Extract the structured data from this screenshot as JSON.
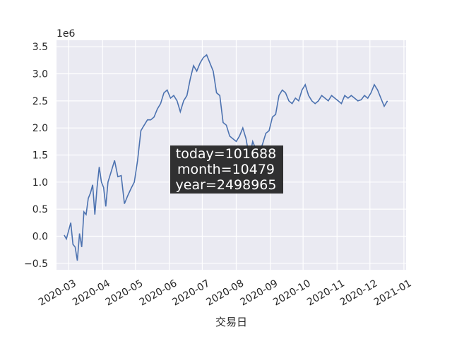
{
  "chart_data": {
    "type": "line",
    "title": "",
    "xlabel": "交易日",
    "ylabel": "",
    "y_offset_label": "1e6",
    "ylim": [
      -0.62,
      3.62
    ],
    "xlim": [
      "2020-02-19",
      "2021-01-03"
    ],
    "grid": true,
    "background": "#eaeaf2",
    "line_color": "#4c72b0",
    "x_ticks": [
      "2020-03",
      "2020-04",
      "2020-05",
      "2020-06",
      "2020-07",
      "2020-08",
      "2020-09",
      "2020-10",
      "2020-11",
      "2020-12",
      "2021-01"
    ],
    "x_tick_dates": [
      "2020-03-01",
      "2020-04-01",
      "2020-05-01",
      "2020-06-01",
      "2020-07-01",
      "2020-08-01",
      "2020-09-01",
      "2020-10-01",
      "2020-11-01",
      "2020-12-01",
      "2021-01-01"
    ],
    "y_ticks": [
      -0.5,
      0.0,
      0.5,
      1.0,
      1.5,
      2.0,
      2.5,
      3.0,
      3.5
    ],
    "y_tick_labels": [
      "−0.5",
      "0.0",
      "0.5",
      "1.0",
      "1.5",
      "2.0",
      "2.5",
      "3.0",
      "3.5"
    ],
    "annotation": [
      "today=101688",
      "month=10479",
      "year=2498965"
    ],
    "series": [
      {
        "x": [
          "2020-02-26",
          "2020-02-28",
          "2020-03-03",
          "2020-03-05",
          "2020-03-07",
          "2020-03-09",
          "2020-03-11",
          "2020-03-13",
          "2020-03-15",
          "2020-03-17",
          "2020-03-19",
          "2020-03-21",
          "2020-03-23",
          "2020-03-25",
          "2020-03-27",
          "2020-03-29",
          "2020-03-31",
          "2020-04-02",
          "2020-04-04",
          "2020-04-06",
          "2020-04-09",
          "2020-04-12",
          "2020-04-15",
          "2020-04-18",
          "2020-04-21",
          "2020-04-24",
          "2020-04-27",
          "2020-04-30",
          "2020-05-03",
          "2020-05-06",
          "2020-05-09",
          "2020-05-12",
          "2020-05-15",
          "2020-05-18",
          "2020-05-21",
          "2020-05-24",
          "2020-05-27",
          "2020-05-30",
          "2020-06-02",
          "2020-06-05",
          "2020-06-08",
          "2020-06-11",
          "2020-06-14",
          "2020-06-17",
          "2020-06-20",
          "2020-06-23",
          "2020-06-26",
          "2020-06-29",
          "2020-07-02",
          "2020-07-05",
          "2020-07-08",
          "2020-07-11",
          "2020-07-14",
          "2020-07-17",
          "2020-07-20",
          "2020-07-23",
          "2020-07-26",
          "2020-07-29",
          "2020-08-01",
          "2020-08-04",
          "2020-08-07",
          "2020-08-10",
          "2020-08-13",
          "2020-08-16",
          "2020-08-19",
          "2020-08-22",
          "2020-08-25",
          "2020-08-28",
          "2020-08-31",
          "2020-09-03",
          "2020-09-06",
          "2020-09-09",
          "2020-09-12",
          "2020-09-15",
          "2020-09-18",
          "2020-09-21",
          "2020-09-24",
          "2020-09-27",
          "2020-09-30",
          "2020-10-03",
          "2020-10-06",
          "2020-10-09",
          "2020-10-12",
          "2020-10-15",
          "2020-10-18",
          "2020-10-21",
          "2020-10-24",
          "2020-10-27",
          "2020-10-30",
          "2020-11-02",
          "2020-11-05",
          "2020-11-08",
          "2020-11-11",
          "2020-11-14",
          "2020-11-17",
          "2020-11-20",
          "2020-11-23",
          "2020-11-26",
          "2020-11-29",
          "2020-12-02",
          "2020-12-05",
          "2020-12-08",
          "2020-12-11",
          "2020-12-14",
          "2020-12-17"
        ],
        "y": [
          0.02,
          -0.05,
          0.25,
          -0.15,
          -0.2,
          -0.45,
          0.05,
          -0.2,
          0.45,
          0.4,
          0.7,
          0.8,
          0.95,
          0.4,
          0.9,
          1.28,
          1.0,
          0.9,
          0.55,
          1.0,
          1.2,
          1.4,
          1.1,
          1.12,
          0.6,
          0.75,
          0.88,
          1.0,
          1.4,
          1.95,
          2.05,
          2.15,
          2.15,
          2.2,
          2.35,
          2.45,
          2.65,
          2.7,
          2.55,
          2.6,
          2.5,
          2.3,
          2.5,
          2.6,
          2.9,
          3.15,
          3.05,
          3.2,
          3.3,
          3.35,
          3.2,
          3.05,
          2.65,
          2.6,
          2.1,
          2.05,
          1.85,
          1.8,
          1.75,
          1.85,
          2.0,
          1.8,
          1.45,
          1.75,
          1.6,
          1.55,
          1.7,
          1.9,
          1.95,
          2.2,
          2.25,
          2.6,
          2.7,
          2.65,
          2.5,
          2.45,
          2.55,
          2.5,
          2.7,
          2.8,
          2.6,
          2.5,
          2.45,
          2.5,
          2.6,
          2.55,
          2.5,
          2.6,
          2.55,
          2.5,
          2.45,
          2.6,
          2.55,
          2.6,
          2.55,
          2.5,
          2.52,
          2.6,
          2.55,
          2.65,
          2.8,
          2.7,
          2.55,
          2.4,
          2.5
        ]
      }
    ]
  }
}
